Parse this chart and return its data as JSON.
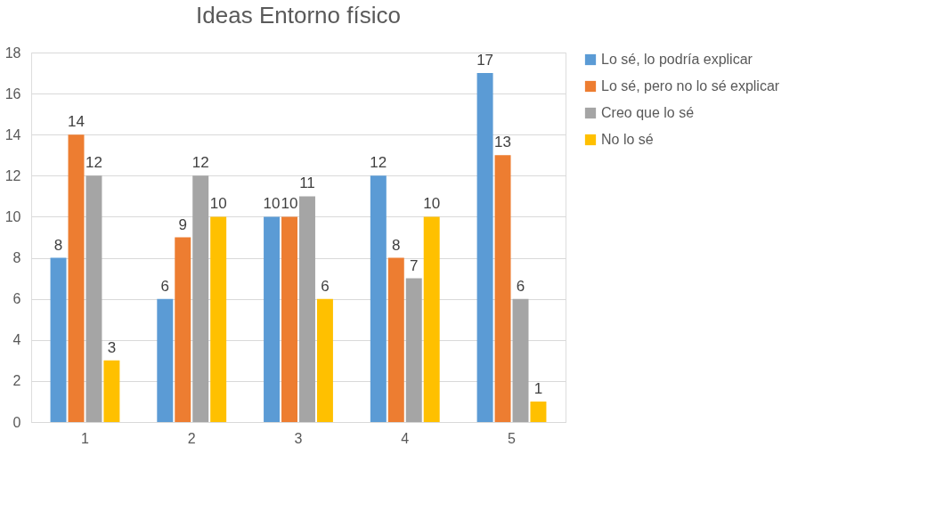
{
  "chart_data": {
    "type": "bar",
    "title": "Ideas Entorno físico",
    "categories": [
      "1",
      "2",
      "3",
      "4",
      "5"
    ],
    "series": [
      {
        "name": "Lo sé, lo podría explicar",
        "color": "#5b9bd5",
        "values": [
          8,
          6,
          10,
          12,
          17
        ]
      },
      {
        "name": "Lo sé, pero no lo sé explicar",
        "color": "#ed7d31",
        "values": [
          14,
          9,
          10,
          8,
          13
        ]
      },
      {
        "name": "Creo que lo sé",
        "color": "#a5a5a5",
        "values": [
          12,
          12,
          11,
          7,
          6
        ]
      },
      {
        "name": "No lo sé",
        "color": "#ffc000",
        "values": [
          3,
          10,
          6,
          10,
          1
        ]
      }
    ],
    "ylim": [
      0,
      18
    ],
    "yticks": [
      0,
      2,
      4,
      6,
      8,
      10,
      12,
      14,
      16,
      18
    ],
    "grid": "y",
    "legend": "right",
    "data_labels": true
  }
}
